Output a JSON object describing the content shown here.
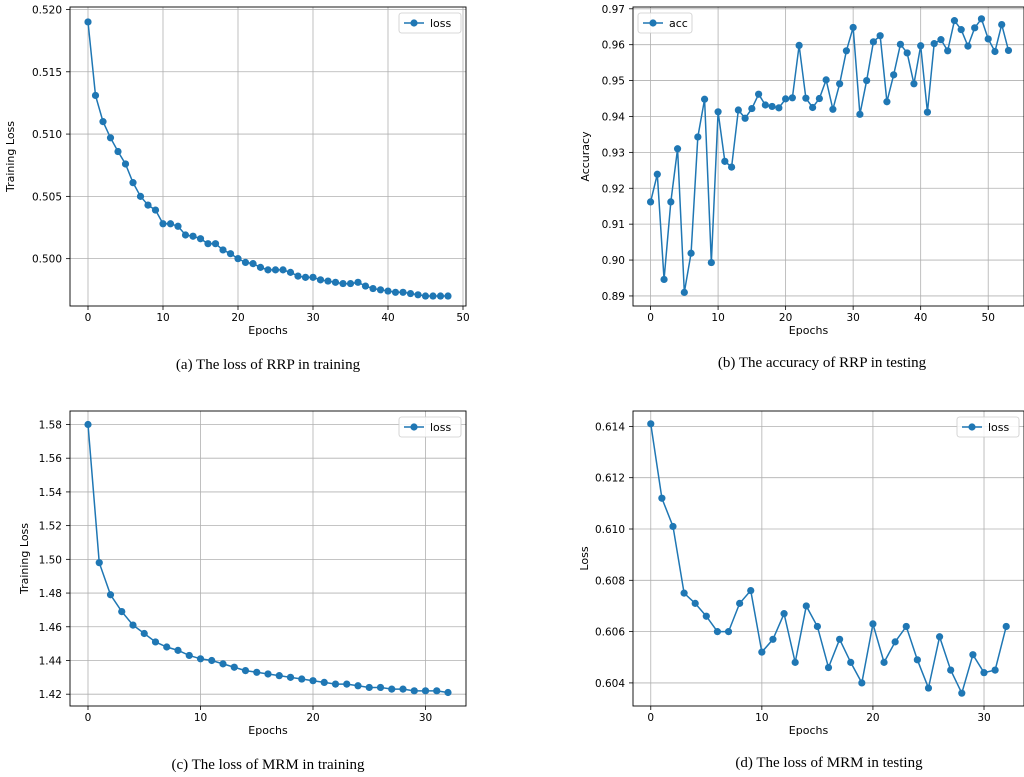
{
  "chart_data": [
    {
      "id": "a",
      "type": "line",
      "caption": "(a) The loss of RRP in training",
      "xlabel": "Epochs",
      "ylabel": "Training Loss",
      "xlim": [
        -2.4,
        50.4
      ],
      "ylim": [
        0.4962,
        0.5202
      ],
      "xticks": [
        0,
        10,
        20,
        30,
        40,
        50
      ],
      "yticks": [
        0.5,
        0.505,
        0.51,
        0.515,
        0.52
      ],
      "ytick_labels": [
        "0.500",
        "0.505",
        "0.510",
        "0.515",
        "0.520"
      ],
      "grid": true,
      "legend_position": "top-right",
      "color": "#1f77b4",
      "series": [
        {
          "name": "loss",
          "x": [
            0,
            1,
            2,
            3,
            4,
            5,
            6,
            7,
            8,
            9,
            10,
            11,
            12,
            13,
            14,
            15,
            16,
            17,
            18,
            19,
            20,
            21,
            22,
            23,
            24,
            25,
            26,
            27,
            28,
            29,
            30,
            31,
            32,
            33,
            34,
            35,
            36,
            37,
            38,
            39,
            40,
            41,
            42,
            43,
            44,
            45,
            46,
            47,
            48
          ],
          "values": [
            0.519,
            0.5131,
            0.511,
            0.5097,
            0.5086,
            0.5076,
            0.5061,
            0.505,
            0.5043,
            0.5039,
            0.5028,
            0.5028,
            0.5026,
            0.5019,
            0.5018,
            0.5016,
            0.5012,
            0.5012,
            0.5007,
            0.5004,
            0.5,
            0.4997,
            0.4996,
            0.4993,
            0.4991,
            0.4991,
            0.4991,
            0.4989,
            0.4986,
            0.4985,
            0.4985,
            0.4983,
            0.4982,
            0.4981,
            0.498,
            0.498,
            0.4981,
            0.4978,
            0.4976,
            0.4975,
            0.4974,
            0.4973,
            0.4973,
            0.4972,
            0.4971,
            0.497,
            0.497,
            0.497,
            0.497
          ]
        }
      ]
    },
    {
      "id": "b",
      "type": "line",
      "caption": "(b) The accuracy of RRP in testing",
      "xlabel": "Epochs",
      "ylabel": "Accuracy",
      "xlim": [
        -2.6,
        55.3
      ],
      "ylim": [
        0.8872,
        0.9705
      ],
      "xticks": [
        0,
        10,
        20,
        30,
        40,
        50
      ],
      "yticks": [
        0.89,
        0.9,
        0.91,
        0.92,
        0.93,
        0.94,
        0.95,
        0.96,
        0.97
      ],
      "ytick_labels": [
        "0.89",
        "0.90",
        "0.91",
        "0.92",
        "0.93",
        "0.94",
        "0.95",
        "0.96",
        "0.97"
      ],
      "grid": true,
      "legend_position": "top-left",
      "color": "#1f77b4",
      "series": [
        {
          "name": "acc",
          "x": [
            0,
            1,
            2,
            3,
            4,
            5,
            6,
            7,
            8,
            9,
            10,
            11,
            12,
            13,
            14,
            15,
            16,
            17,
            18,
            19,
            20,
            21,
            22,
            23,
            24,
            25,
            26,
            27,
            28,
            29,
            30,
            31,
            32,
            33,
            34,
            35,
            36,
            37,
            38,
            39,
            40,
            41,
            42,
            43,
            44,
            45,
            46,
            47,
            48,
            49,
            50,
            51,
            52,
            53
          ],
          "values": [
            0.9162,
            0.9239,
            0.8946,
            0.9162,
            0.931,
            0.891,
            0.9019,
            0.9343,
            0.9448,
            0.8993,
            0.9413,
            0.9275,
            0.9259,
            0.9418,
            0.9395,
            0.9422,
            0.9462,
            0.9432,
            0.9428,
            0.9424,
            0.9449,
            0.9452,
            0.9598,
            0.9451,
            0.9425,
            0.945,
            0.9502,
            0.942,
            0.9491,
            0.9583,
            0.9648,
            0.9406,
            0.95,
            0.9608,
            0.9625,
            0.9441,
            0.9516,
            0.9601,
            0.9577,
            0.9491,
            0.9597,
            0.9412,
            0.9603,
            0.9614,
            0.9583,
            0.9667,
            0.9642,
            0.9596,
            0.9647,
            0.9672,
            0.9616,
            0.9581,
            0.9656,
            0.9584
          ]
        }
      ]
    },
    {
      "id": "c",
      "type": "line",
      "caption": "(c) The loss of MRM in training",
      "xlabel": "Epochs",
      "ylabel": "Training Loss",
      "xlim": [
        -1.6,
        33.6
      ],
      "ylim": [
        1.413,
        1.588
      ],
      "xticks": [
        0,
        10,
        20,
        30
      ],
      "yticks": [
        1.42,
        1.44,
        1.46,
        1.48,
        1.5,
        1.52,
        1.54,
        1.56,
        1.58
      ],
      "ytick_labels": [
        "1.42",
        "1.44",
        "1.46",
        "1.48",
        "1.50",
        "1.52",
        "1.54",
        "1.56",
        "1.58"
      ],
      "grid": true,
      "legend_position": "top-right",
      "color": "#1f77b4",
      "series": [
        {
          "name": "loss",
          "x": [
            0,
            1,
            2,
            3,
            4,
            5,
            6,
            7,
            8,
            9,
            10,
            11,
            12,
            13,
            14,
            15,
            16,
            17,
            18,
            19,
            20,
            21,
            22,
            23,
            24,
            25,
            26,
            27,
            28,
            29,
            30,
            31,
            32
          ],
          "values": [
            1.58,
            1.498,
            1.479,
            1.469,
            1.461,
            1.456,
            1.451,
            1.448,
            1.446,
            1.443,
            1.441,
            1.44,
            1.438,
            1.436,
            1.434,
            1.433,
            1.432,
            1.431,
            1.43,
            1.429,
            1.428,
            1.427,
            1.426,
            1.426,
            1.425,
            1.424,
            1.424,
            1.423,
            1.423,
            1.422,
            1.422,
            1.422,
            1.421
          ]
        }
      ]
    },
    {
      "id": "d",
      "type": "line",
      "caption": "(d) The loss of MRM in testing",
      "xlabel": "Epochs",
      "ylabel": "Loss",
      "xlim": [
        -1.6,
        33.6
      ],
      "ylim": [
        0.6031,
        0.6146
      ],
      "xticks": [
        0,
        10,
        20,
        30
      ],
      "yticks": [
        0.604,
        0.606,
        0.608,
        0.61,
        0.612,
        0.614
      ],
      "ytick_labels": [
        "0.604",
        "0.606",
        "0.608",
        "0.610",
        "0.612",
        "0.614"
      ],
      "grid": true,
      "legend_position": "top-right",
      "color": "#1f77b4",
      "series": [
        {
          "name": "loss",
          "x": [
            0,
            1,
            2,
            3,
            4,
            5,
            6,
            7,
            8,
            9,
            10,
            11,
            12,
            13,
            14,
            15,
            16,
            17,
            18,
            19,
            20,
            21,
            22,
            23,
            24,
            25,
            26,
            27,
            28,
            29,
            30,
            31,
            32
          ],
          "values": [
            0.6141,
            0.6112,
            0.6101,
            0.6075,
            0.6071,
            0.6066,
            0.606,
            0.606,
            0.6071,
            0.6076,
            0.6052,
            0.6057,
            0.6067,
            0.6048,
            0.607,
            0.6062,
            0.6046,
            0.6057,
            0.6048,
            0.604,
            0.6063,
            0.6048,
            0.6056,
            0.6062,
            0.6049,
            0.6038,
            0.6058,
            0.6045,
            0.6036,
            0.6051,
            0.6044,
            0.6045,
            0.6062
          ]
        }
      ]
    }
  ]
}
